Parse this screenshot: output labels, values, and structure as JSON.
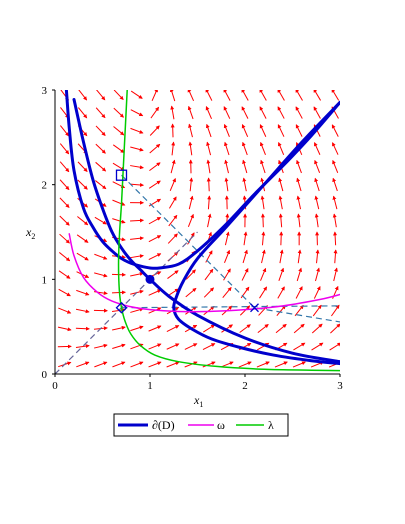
{
  "chart_data": {
    "type": "line",
    "xlim": [
      0,
      3
    ],
    "ylim": [
      0,
      3
    ],
    "x_ticks": [
      "0",
      "1",
      "2",
      "3"
    ],
    "y_ticks": [
      "0",
      "1",
      "2",
      "3"
    ],
    "xlabel": {
      "base": "x",
      "sub": "1"
    },
    "ylabel": {
      "base": "x",
      "sub": "2"
    },
    "grid": false,
    "legend_position": "bottom",
    "vector_field": {
      "color": "#ff0000",
      "description": "direction field arrows"
    },
    "series": [
      {
        "name": "∂(D)",
        "color": "#0000cc",
        "style": "thick solid",
        "branches": [
          {
            "x": [
              0.12,
              0.15,
              0.2,
              0.3,
              0.4,
              0.5,
              0.6,
              0.7,
              0.8,
              0.9,
              1.0,
              1.1,
              1.3,
              1.5,
              1.8,
              2.1,
              2.4,
              2.7,
              3.0
            ],
            "y": [
              3.0,
              2.6,
              2.15,
              1.75,
              1.55,
              1.4,
              1.3,
              1.22,
              1.17,
              1.14,
              1.12,
              1.12,
              1.16,
              1.3,
              1.58,
              1.9,
              2.2,
              2.52,
              2.87
            ]
          },
          {
            "x": [
              3.0,
              2.6,
              2.2,
              1.8,
              1.5,
              1.35,
              1.28,
              1.25,
              1.3,
              1.45,
              1.65,
              1.95,
              2.3,
              2.7,
              3.0
            ],
            "y": [
              2.87,
              2.45,
              2.0,
              1.55,
              1.22,
              0.98,
              0.82,
              0.7,
              0.58,
              0.47,
              0.37,
              0.28,
              0.2,
              0.14,
              0.11
            ]
          },
          {
            "x": [
              0.2,
              0.3,
              0.4,
              0.5,
              0.6,
              0.7,
              0.8,
              0.9,
              1.0,
              1.2,
              1.5,
              2.0,
              2.5,
              3.0
            ],
            "y": [
              2.9,
              2.45,
              2.05,
              1.75,
              1.5,
              1.33,
              1.2,
              1.1,
              1.0,
              0.82,
              0.62,
              0.38,
              0.22,
              0.13
            ]
          }
        ]
      },
      {
        "name": "ω",
        "color": "#ee00ee",
        "style": "solid",
        "x": [
          0.15,
          0.2,
          0.3,
          0.45,
          0.6,
          0.8,
          1.0,
          1.3,
          1.6,
          2.0,
          2.4,
          2.8,
          3.0
        ],
        "y": [
          1.48,
          1.25,
          1.02,
          0.86,
          0.77,
          0.71,
          0.68,
          0.66,
          0.66,
          0.68,
          0.72,
          0.79,
          0.84
        ]
      },
      {
        "name": "λ",
        "color": "#00cc00",
        "style": "solid",
        "x": [
          0.76,
          0.74,
          0.72,
          0.7,
          0.68,
          0.67,
          0.67,
          0.68,
          0.7,
          0.74,
          0.8,
          0.9,
          1.05,
          1.3,
          1.7,
          2.2,
          2.7,
          3.0
        ],
        "y": [
          3.0,
          2.6,
          2.2,
          1.8,
          1.5,
          1.25,
          1.05,
          0.85,
          0.7,
          0.55,
          0.42,
          0.3,
          0.2,
          0.13,
          0.08,
          0.05,
          0.04,
          0.035
        ]
      }
    ],
    "dashed_lines": [
      {
        "color": "#666699",
        "x": [
          0,
          1.5
        ],
        "y": [
          0,
          1.5
        ]
      },
      {
        "color": "#3377aa",
        "x": [
          0.7,
          2.1,
          3.0
        ],
        "y": [
          2.1,
          0.7,
          0.55
        ]
      },
      {
        "color": "#3377aa",
        "x": [
          0.7,
          3.0
        ],
        "y": [
          0.7,
          0.72
        ]
      }
    ],
    "markers": [
      {
        "shape": "filled-circle",
        "x": 1.0,
        "y": 1.0,
        "color": "#0000cc"
      },
      {
        "shape": "open-square",
        "x": 0.7,
        "y": 2.1,
        "color": "#0000cc"
      },
      {
        "shape": "open-diamond",
        "x": 0.7,
        "y": 0.7,
        "color": "#0000cc"
      },
      {
        "shape": "cross",
        "x": 2.1,
        "y": 0.7,
        "color": "#0000cc"
      }
    ]
  }
}
